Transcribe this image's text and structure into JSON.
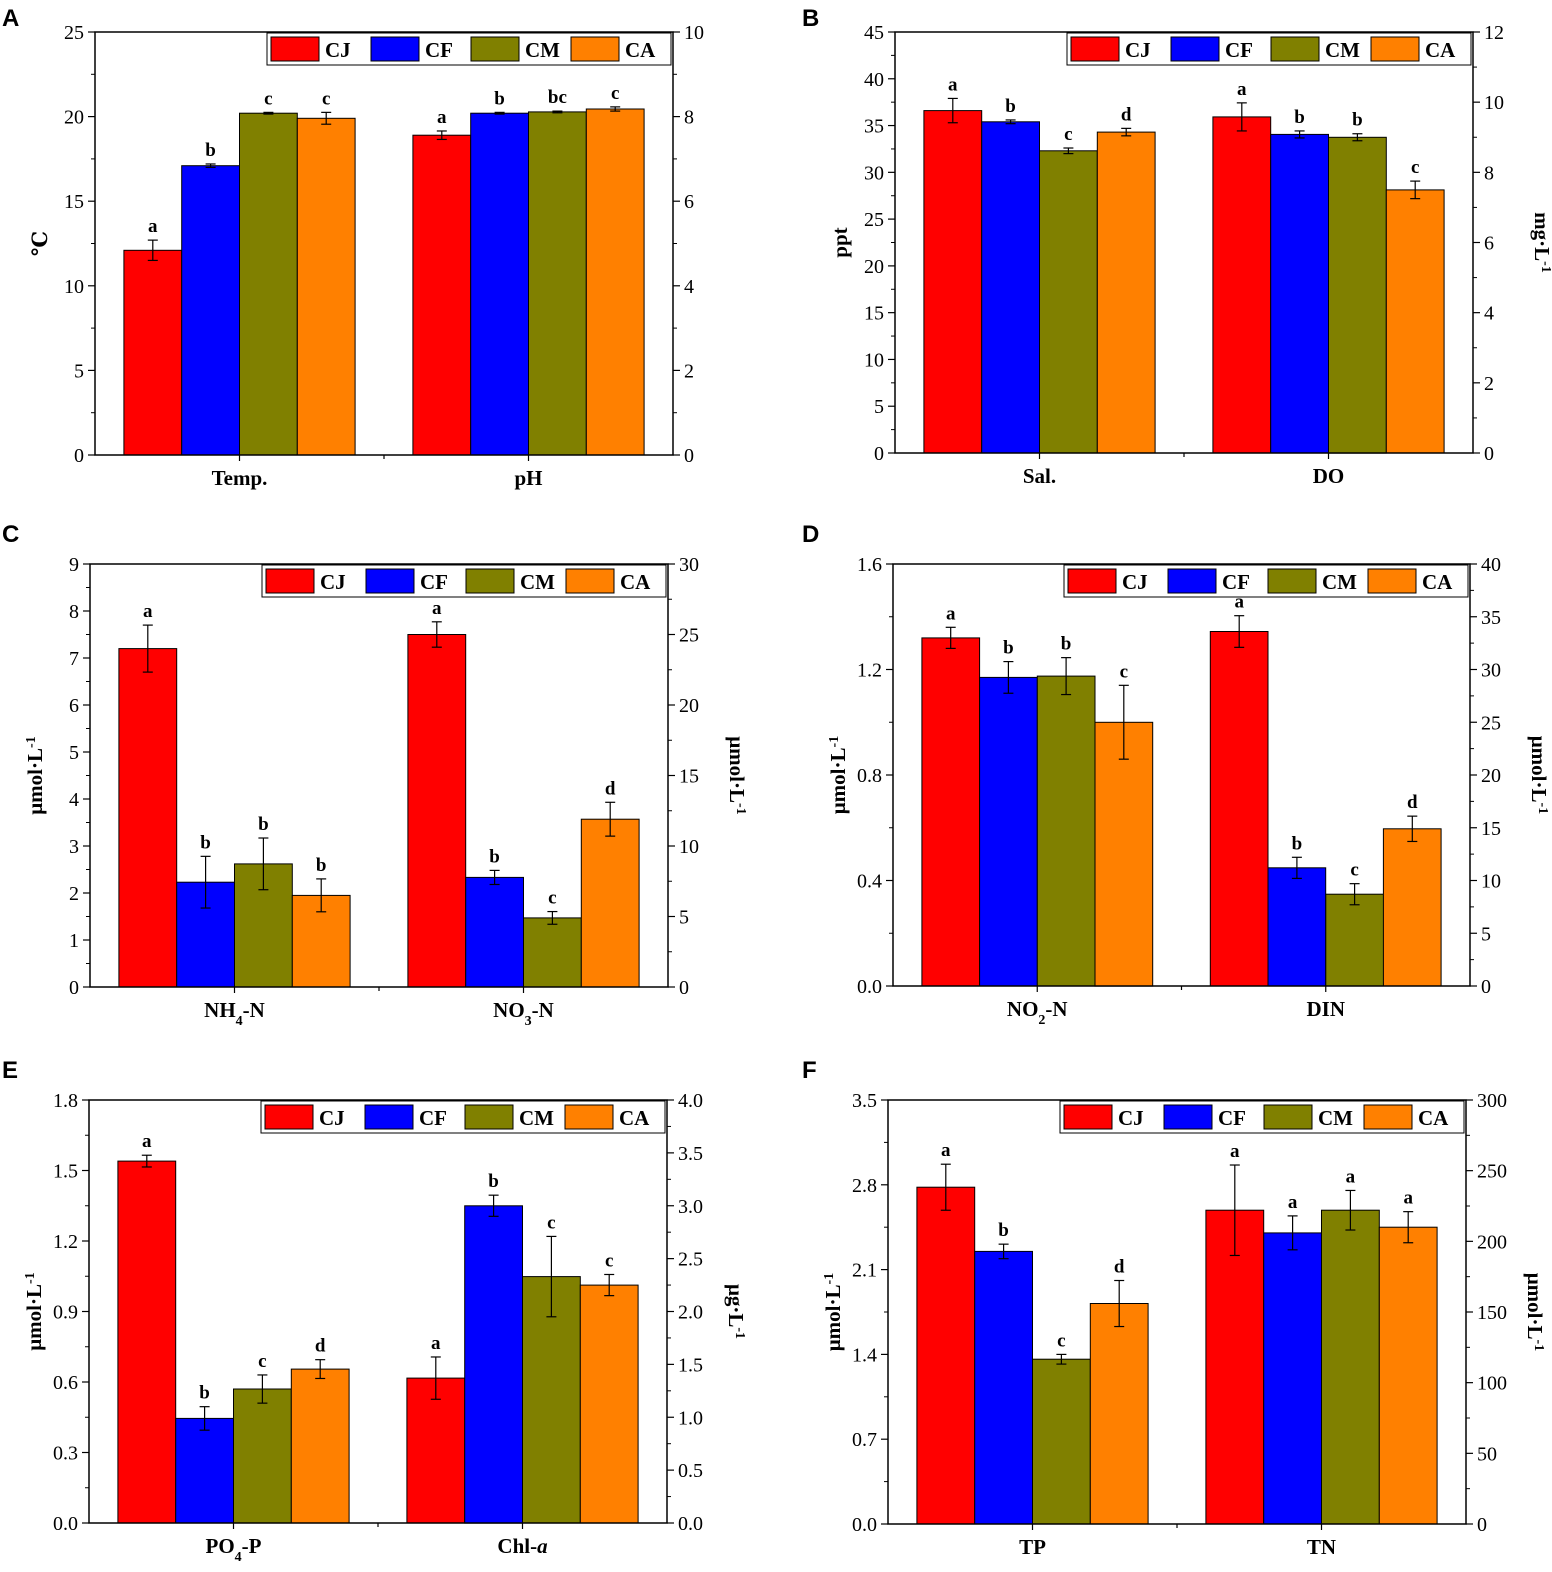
{
  "colors": {
    "CJ": "#ff0000",
    "CF": "#0000ff",
    "CM": "#808000",
    "CA": "#ff8000",
    "axis": "#000000"
  },
  "chart_data": [
    {
      "panel": "A",
      "type": "bar",
      "legend": [
        "CJ",
        "CF",
        "CM",
        "CA"
      ],
      "legend_position": "top-right",
      "ylabel_left": "℃",
      "ylabel_right": "",
      "ylim_left": [
        0,
        25
      ],
      "yticks_left": [
        "0",
        "5",
        "10",
        "15",
        "20",
        "25"
      ],
      "ylim_right": [
        0,
        10
      ],
      "yticks_right": [
        "0",
        "2",
        "4",
        "6",
        "8",
        "10"
      ],
      "groups": [
        {
          "label": "Temp.",
          "sub": "",
          "suffix": "",
          "label_italic": "",
          "axis": "left",
          "values": [
            12.1,
            17.1,
            20.2,
            19.9
          ],
          "errors": [
            0.6,
            0.1,
            0.05,
            0.35
          ],
          "sig": [
            "a",
            "b",
            "c",
            "c"
          ]
        },
        {
          "label": "pH",
          "sub": "",
          "suffix": "",
          "label_italic": "",
          "axis": "right",
          "values": [
            7.56,
            8.08,
            8.11,
            8.18
          ],
          "errors": [
            0.1,
            0.02,
            0.02,
            0.05
          ],
          "sig": [
            "a",
            "b",
            "bc",
            "c"
          ]
        }
      ]
    },
    {
      "panel": "B",
      "type": "bar",
      "legend": [
        "CJ",
        "CF",
        "CM",
        "CA"
      ],
      "legend_position": "top-right",
      "ylabel_left": "ppt",
      "ylabel_right": "mg·L",
      "ylabel_right_sup": "-1",
      "ylim_left": [
        0,
        45
      ],
      "yticks_left": [
        "0",
        "5",
        "10",
        "15",
        "20",
        "25",
        "30",
        "35",
        "40",
        "45"
      ],
      "ylim_right": [
        0,
        12
      ],
      "yticks_right": [
        "0",
        "2",
        "4",
        "6",
        "8",
        "10",
        "12"
      ],
      "groups": [
        {
          "label": "Sal.",
          "sub": "",
          "suffix": "",
          "label_italic": "",
          "axis": "left",
          "values": [
            36.6,
            35.4,
            32.3,
            34.3
          ],
          "errors": [
            1.3,
            0.2,
            0.3,
            0.4
          ],
          "sig": [
            "a",
            "b",
            "c",
            "d"
          ]
        },
        {
          "label": "DO",
          "sub": "",
          "suffix": "",
          "label_italic": "",
          "axis": "right",
          "values": [
            9.58,
            9.08,
            9.0,
            7.5
          ],
          "errors": [
            0.4,
            0.1,
            0.1,
            0.25
          ],
          "sig": [
            "a",
            "b",
            "b",
            "c"
          ]
        }
      ]
    },
    {
      "panel": "C",
      "type": "bar",
      "legend": [
        "CJ",
        "CF",
        "CM",
        "CA"
      ],
      "legend_position": "top-right",
      "ylabel_left": "μmol·L",
      "ylabel_left_sup": "-1",
      "ylabel_right": "μmol·L",
      "ylabel_right_sup": "-1",
      "ylim_left": [
        0,
        9
      ],
      "yticks_left": [
        "0",
        "1",
        "2",
        "3",
        "4",
        "5",
        "6",
        "7",
        "8",
        "9"
      ],
      "ylim_right": [
        0,
        30
      ],
      "yticks_right": [
        "0",
        "5",
        "10",
        "15",
        "20",
        "25",
        "30"
      ],
      "groups": [
        {
          "label": "NH",
          "sub": "4",
          "suffix": "-N",
          "label_italic": "",
          "axis": "left",
          "values": [
            7.2,
            2.23,
            2.62,
            1.95
          ],
          "errors": [
            0.5,
            0.55,
            0.55,
            0.35
          ],
          "sig": [
            "a",
            "b",
            "b",
            "b"
          ]
        },
        {
          "label": "NO",
          "sub": "3",
          "suffix": "-N",
          "label_italic": "",
          "axis": "right",
          "values": [
            25.0,
            7.77,
            4.9,
            11.9
          ],
          "errors": [
            0.9,
            0.5,
            0.45,
            1.2
          ],
          "sig": [
            "a",
            "b",
            "c",
            "d"
          ]
        }
      ]
    },
    {
      "panel": "D",
      "type": "bar",
      "legend": [
        "CJ",
        "CF",
        "CM",
        "CA"
      ],
      "legend_position": "top-right",
      "ylabel_left": "μmol·L",
      "ylabel_left_sup": "-1",
      "ylabel_right": "μmol·L",
      "ylabel_right_sup": "-1",
      "ylim_left": [
        0,
        1.6
      ],
      "yticks_left": [
        "0.0",
        "0.4",
        "0.8",
        "1.2",
        "1.6"
      ],
      "ylim_right": [
        0,
        40
      ],
      "yticks_right": [
        "0",
        "5",
        "10",
        "15",
        "20",
        "25",
        "30",
        "35",
        "40"
      ],
      "groups": [
        {
          "label": "NO",
          "sub": "2",
          "suffix": "-N",
          "label_italic": "",
          "axis": "left",
          "values": [
            1.32,
            1.17,
            1.175,
            1.0
          ],
          "errors": [
            0.04,
            0.06,
            0.07,
            0.14
          ],
          "sig": [
            "a",
            "b",
            "b",
            "c"
          ]
        },
        {
          "label": "DIN",
          "sub": "",
          "suffix": "",
          "label_italic": "",
          "axis": "right",
          "values": [
            33.6,
            11.2,
            8.7,
            14.9
          ],
          "errors": [
            1.5,
            1.0,
            1.0,
            1.2
          ],
          "sig": [
            "a",
            "b",
            "c",
            "d"
          ]
        }
      ]
    },
    {
      "panel": "E",
      "type": "bar",
      "legend": [
        "CJ",
        "CF",
        "CM",
        "CA"
      ],
      "legend_position": "top-right",
      "ylabel_left": "μmol·L",
      "ylabel_left_sup": "-1",
      "ylabel_right": "μg·L",
      "ylabel_right_sup": "-1",
      "ylim_left": [
        0,
        1.8
      ],
      "yticks_left": [
        "0.0",
        "0.3",
        "0.6",
        "0.9",
        "1.2",
        "1.5",
        "1.8"
      ],
      "ylim_right": [
        0,
        4.0
      ],
      "yticks_right": [
        "0.0",
        "0.5",
        "1.0",
        "1.5",
        "2.0",
        "2.5",
        "3.0",
        "3.5",
        "4.0"
      ],
      "groups": [
        {
          "label": "PO",
          "sub": "4",
          "suffix": "-P",
          "label_italic": "",
          "axis": "left",
          "values": [
            1.54,
            0.445,
            0.57,
            0.655
          ],
          "errors": [
            0.025,
            0.05,
            0.06,
            0.04
          ],
          "sig": [
            "a",
            "b",
            "c",
            "d"
          ]
        },
        {
          "label": "Chl-",
          "sub": "",
          "suffix": "",
          "label_italic": "a",
          "axis": "right",
          "values": [
            1.37,
            3.0,
            2.33,
            2.25
          ],
          "errors": [
            0.2,
            0.1,
            0.38,
            0.1
          ],
          "sig": [
            "a",
            "b",
            "c",
            "c"
          ]
        }
      ]
    },
    {
      "panel": "F",
      "type": "bar",
      "legend": [
        "CJ",
        "CF",
        "CM",
        "CA"
      ],
      "legend_position": "top-right",
      "ylabel_left": "μmol·L",
      "ylabel_left_sup": "-1",
      "ylabel_right": "μmol·L",
      "ylabel_right_sup": "-1",
      "ylim_left": [
        0,
        3.5
      ],
      "yticks_left": [
        "0.0",
        "0.7",
        "1.4",
        "2.1",
        "2.8",
        "3.5"
      ],
      "ylim_right": [
        0,
        300
      ],
      "yticks_right": [
        "0",
        "50",
        "100",
        "150",
        "200",
        "250",
        "300"
      ],
      "groups": [
        {
          "label": "TP",
          "sub": "",
          "suffix": "",
          "label_italic": "",
          "axis": "left",
          "values": [
            2.78,
            2.25,
            1.36,
            1.82
          ],
          "errors": [
            0.19,
            0.06,
            0.04,
            0.19
          ],
          "sig": [
            "a",
            "b",
            "c",
            "d"
          ]
        },
        {
          "label": "TN",
          "sub": "",
          "suffix": "",
          "label_italic": "",
          "axis": "right",
          "values": [
            222,
            206,
            222,
            210
          ],
          "errors": [
            32,
            12,
            14,
            11
          ],
          "sig": [
            "a",
            "a",
            "a",
            "a"
          ]
        }
      ]
    }
  ]
}
